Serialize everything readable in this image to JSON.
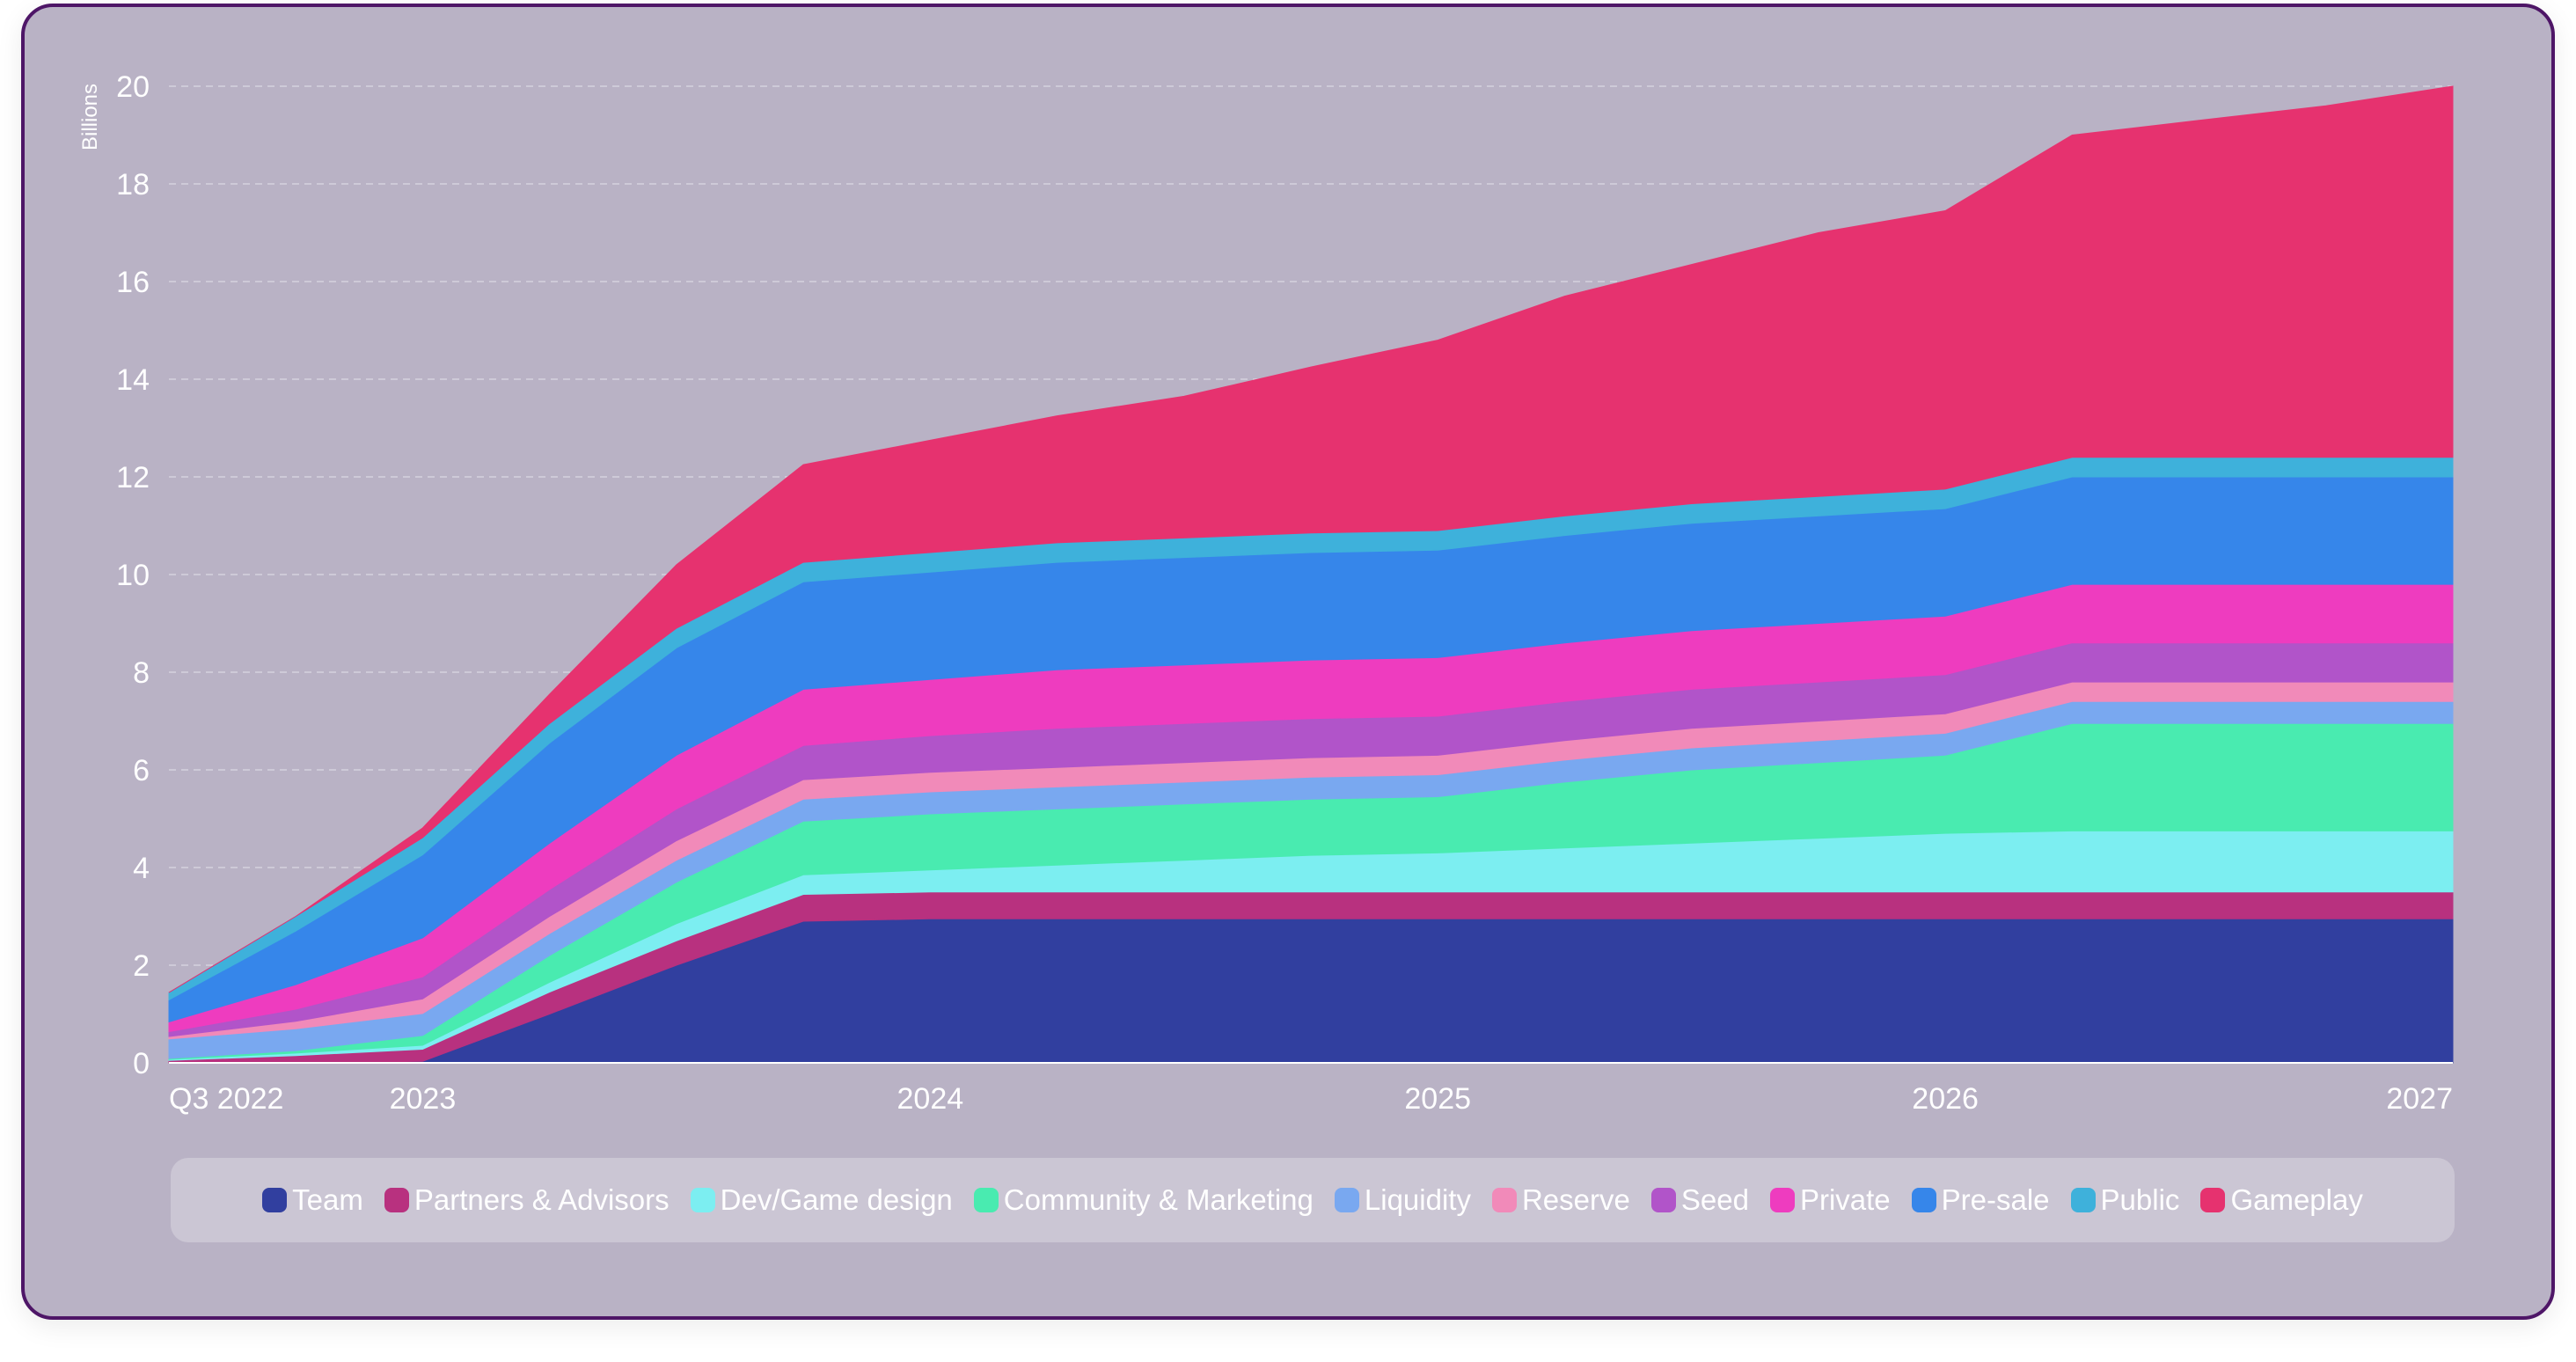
{
  "chart_data": {
    "type": "area",
    "stacked": true,
    "xlabel": "",
    "ylabel": "Billions",
    "ylim": [
      0,
      20
    ],
    "yticks": [
      "0",
      "2",
      "4",
      "6",
      "8",
      "10",
      "12",
      "14",
      "16",
      "18",
      "20"
    ],
    "xticks": [
      "Q3 2022",
      "2023",
      "2024",
      "2025",
      "2026",
      "2027"
    ],
    "x": [
      "2022-07",
      "2022-10",
      "2023-01",
      "2023-04",
      "2023-07",
      "2023-10",
      "2024-01",
      "2024-04",
      "2024-07",
      "2024-10",
      "2025-01",
      "2025-04",
      "2025-07",
      "2025-10",
      "2026-01",
      "2026-04",
      "2026-07",
      "2026-10",
      "2027-01"
    ],
    "grid": true,
    "legend_position": "bottom",
    "series": [
      {
        "name": "Team",
        "color": "#313f9f",
        "values": [
          0,
          0,
          0.03,
          1.0,
          2.0,
          2.9,
          2.95,
          2.95,
          2.95,
          2.95,
          2.95,
          2.95,
          2.95,
          2.95,
          2.95,
          2.95,
          2.95,
          2.95,
          2.95
        ]
      },
      {
        "name": "Partners & Advisors",
        "color": "#b8317f",
        "values": [
          0.05,
          0.15,
          0.25,
          0.45,
          0.5,
          0.55,
          0.55,
          0.55,
          0.55,
          0.55,
          0.55,
          0.55,
          0.55,
          0.55,
          0.55,
          0.55,
          0.55,
          0.55,
          0.55
        ]
      },
      {
        "name": "Dev/Game design",
        "color": "#7ceef1",
        "values": [
          0.02,
          0.05,
          0.08,
          0.2,
          0.35,
          0.4,
          0.45,
          0.55,
          0.65,
          0.75,
          0.8,
          0.9,
          1.0,
          1.1,
          1.2,
          1.25,
          1.25,
          1.25,
          1.25
        ]
      },
      {
        "name": "Community & Marketing",
        "color": "#49ebb0",
        "values": [
          0.02,
          0.05,
          0.2,
          0.55,
          0.85,
          1.1,
          1.15,
          1.15,
          1.15,
          1.15,
          1.15,
          1.35,
          1.5,
          1.55,
          1.6,
          2.2,
          2.2,
          2.2,
          2.2
        ]
      },
      {
        "name": "Liquidity",
        "color": "#79a8f0",
        "values": [
          0.4,
          0.45,
          0.45,
          0.45,
          0.45,
          0.45,
          0.45,
          0.45,
          0.45,
          0.45,
          0.45,
          0.45,
          0.45,
          0.45,
          0.45,
          0.45,
          0.45,
          0.45,
          0.45
        ]
      },
      {
        "name": "Reserve",
        "color": "#f18ab9",
        "values": [
          0.05,
          0.15,
          0.3,
          0.35,
          0.4,
          0.4,
          0.4,
          0.4,
          0.4,
          0.4,
          0.4,
          0.4,
          0.4,
          0.4,
          0.4,
          0.4,
          0.4,
          0.4,
          0.4
        ]
      },
      {
        "name": "Seed",
        "color": "#b154c9",
        "values": [
          0.1,
          0.25,
          0.45,
          0.55,
          0.65,
          0.7,
          0.75,
          0.8,
          0.8,
          0.8,
          0.8,
          0.8,
          0.8,
          0.8,
          0.8,
          0.8,
          0.8,
          0.8,
          0.8
        ]
      },
      {
        "name": "Private",
        "color": "#ee3cbf",
        "values": [
          0.2,
          0.5,
          0.8,
          0.95,
          1.1,
          1.15,
          1.15,
          1.2,
          1.2,
          1.2,
          1.2,
          1.2,
          1.2,
          1.2,
          1.2,
          1.2,
          1.2,
          1.2,
          1.2
        ]
      },
      {
        "name": "Pre-sale",
        "color": "#3686ea",
        "values": [
          0.45,
          1.1,
          1.7,
          2.05,
          2.2,
          2.2,
          2.2,
          2.2,
          2.2,
          2.2,
          2.2,
          2.2,
          2.2,
          2.2,
          2.2,
          2.2,
          2.2,
          2.2,
          2.2
        ]
      },
      {
        "name": "Public",
        "color": "#3eb1db",
        "values": [
          0.15,
          0.3,
          0.35,
          0.4,
          0.4,
          0.4,
          0.4,
          0.4,
          0.4,
          0.4,
          0.4,
          0.4,
          0.4,
          0.4,
          0.4,
          0.4,
          0.4,
          0.4,
          0.4
        ]
      },
      {
        "name": "Gameplay",
        "color": "#e6326f",
        "values": [
          0,
          0,
          0.2,
          0.6,
          1.3,
          2.0,
          2.3,
          2.6,
          2.9,
          3.4,
          3.9,
          4.5,
          4.9,
          5.4,
          5.7,
          6.6,
          6.9,
          7.2,
          7.6
        ]
      }
    ]
  }
}
